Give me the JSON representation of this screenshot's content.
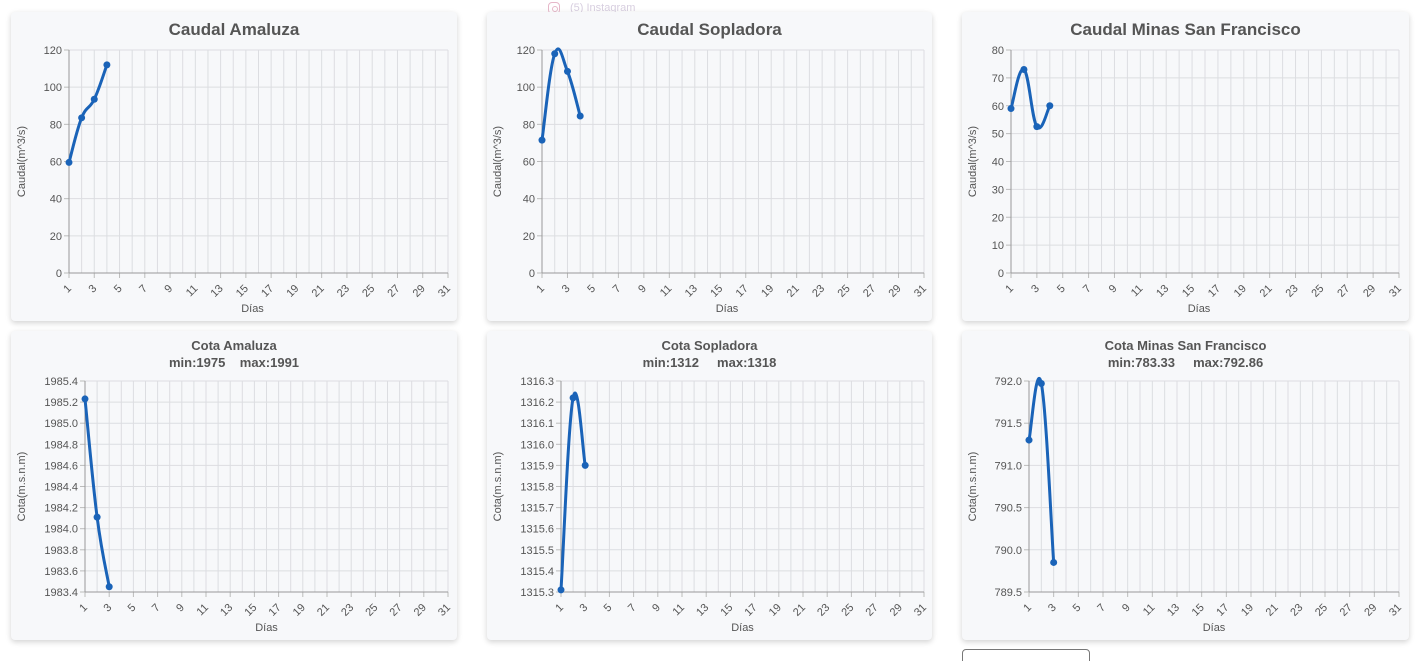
{
  "background_link": {
    "label": "(5) Instagram",
    "icon": "instagram-icon"
  },
  "colors": {
    "line": "#1a63b8",
    "grid": "#dcdde1",
    "text": "#555555",
    "card_bg": "#f7f8fa"
  },
  "chart_data": [
    {
      "type": "line",
      "title": "Caudal Amaluza",
      "xlabel": "Días",
      "ylabel": "Caudal(m^3/s)",
      "xlim": [
        1,
        31
      ],
      "ylim": [
        0,
        120
      ],
      "yticks": [
        0,
        20,
        40,
        60,
        80,
        100,
        120
      ],
      "xticks": [
        1,
        3,
        5,
        7,
        9,
        11,
        13,
        15,
        17,
        19,
        21,
        23,
        25,
        27,
        29,
        31
      ],
      "grid": true,
      "series": [
        {
          "x": [
            1,
            2,
            3,
            4
          ],
          "y": [
            59.5,
            83.5,
            93.5,
            112
          ]
        }
      ]
    },
    {
      "type": "line",
      "title": "Caudal Sopladora",
      "xlabel": "Días",
      "ylabel": "Caudal(m^3/s)",
      "xlim": [
        1,
        31
      ],
      "ylim": [
        0,
        120
      ],
      "yticks": [
        0,
        20,
        40,
        60,
        80,
        100,
        120
      ],
      "xticks": [
        1,
        3,
        5,
        7,
        9,
        11,
        13,
        15,
        17,
        19,
        21,
        23,
        25,
        27,
        29,
        31
      ],
      "grid": true,
      "series": [
        {
          "x": [
            1,
            2,
            3,
            4
          ],
          "y": [
            71.5,
            118,
            108.5,
            84.5
          ]
        }
      ]
    },
    {
      "type": "line",
      "title": "Caudal Minas San Francisco",
      "xlabel": "Días",
      "ylabel": "Caudal(m^3/s)",
      "xlim": [
        1,
        31
      ],
      "ylim": [
        0,
        80
      ],
      "yticks": [
        0,
        10,
        20,
        30,
        40,
        50,
        60,
        70,
        80
      ],
      "xticks": [
        1,
        3,
        5,
        7,
        9,
        11,
        13,
        15,
        17,
        19,
        21,
        23,
        25,
        27,
        29,
        31
      ],
      "grid": true,
      "series": [
        {
          "x": [
            1,
            2,
            3,
            4
          ],
          "y": [
            59,
            73,
            52.5,
            60
          ]
        }
      ]
    },
    {
      "type": "line",
      "title": "Cota Amaluza",
      "subtitle": "min:1975    max:1991",
      "xlabel": "Días",
      "ylabel": "Cota(m.s.n.m)",
      "xlim": [
        1,
        31
      ],
      "ylim": [
        1983.4,
        1985.4
      ],
      "yticks": [
        "1983.4",
        "1983.6",
        "1983.8",
        "1984.0",
        "1984.2",
        "1984.4",
        "1984.6",
        "1984.8",
        "1985.0",
        "1985.2",
        "1985.4"
      ],
      "xticks": [
        1,
        3,
        5,
        7,
        9,
        11,
        13,
        15,
        17,
        19,
        21,
        23,
        25,
        27,
        29,
        31
      ],
      "grid": true,
      "series": [
        {
          "x": [
            1,
            2,
            3
          ],
          "y": [
            1985.23,
            1984.11,
            1983.45
          ]
        }
      ]
    },
    {
      "type": "line",
      "title": "Cota Sopladora",
      "subtitle": "min:1312     max:1318",
      "xlabel": "Días",
      "ylabel": "Cota(m.s.n.m)",
      "xlim": [
        1,
        31
      ],
      "ylim": [
        1315.3,
        1316.3
      ],
      "yticks": [
        "1315.3",
        "1315.4",
        "1315.5",
        "1315.6",
        "1315.7",
        "1315.8",
        "1315.9",
        "1316.0",
        "1316.1",
        "1316.2",
        "1316.3"
      ],
      "xticks": [
        1,
        3,
        5,
        7,
        9,
        11,
        13,
        15,
        17,
        19,
        21,
        23,
        25,
        27,
        29,
        31
      ],
      "grid": true,
      "series": [
        {
          "x": [
            1,
            2,
            3
          ],
          "y": [
            1315.31,
            1316.22,
            1315.9
          ]
        }
      ]
    },
    {
      "type": "line",
      "title": "Cota Minas San Francisco",
      "subtitle": "min:783.33     max:792.86",
      "xlabel": "Días",
      "ylabel": "Cota(m.s.n.m)",
      "xlim": [
        1,
        31
      ],
      "ylim": [
        789.5,
        792.0
      ],
      "yticks": [
        "789.5",
        "790.0",
        "790.5",
        "791.0",
        "791.5",
        "792.0"
      ],
      "xticks": [
        1,
        3,
        5,
        7,
        9,
        11,
        13,
        15,
        17,
        19,
        21,
        23,
        25,
        27,
        29,
        31
      ],
      "grid": true,
      "series": [
        {
          "x": [
            1,
            2,
            3
          ],
          "y": [
            791.3,
            791.97,
            789.85
          ]
        }
      ]
    }
  ]
}
